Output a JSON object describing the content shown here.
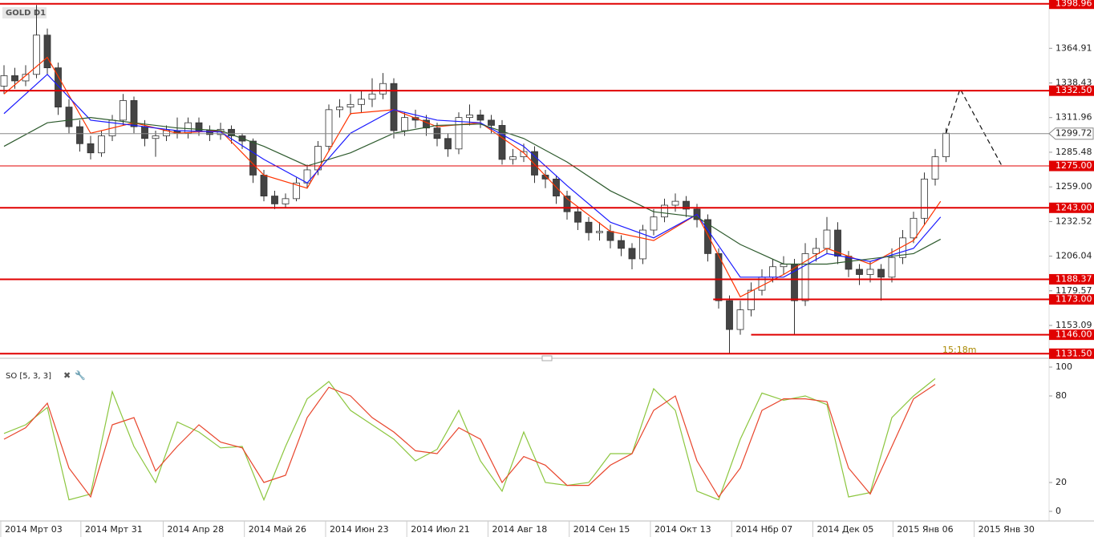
{
  "chart_data": [
    {
      "type": "candlestick",
      "title": "GOLD D1",
      "timer": "15:18m",
      "ylim": [
        1128,
        1400
      ],
      "yticks": [
        1364.91,
        1338.43,
        1311.96,
        1285.48,
        {
          "value": 1259.0,
          "label": "1259.00"
        },
        1232.52,
        1206.04,
        1179.57,
        1153.09
      ],
      "xticks": [
        {
          "value": -0.3,
          "label": "2014 Мрт 03"
        },
        {
          "value": 7.1,
          "label": "2014 Мрт 31"
        },
        {
          "value": 14.7,
          "label": "2014 Апр 28"
        },
        {
          "value": 22.2,
          "label": "2014 Май 26"
        },
        {
          "value": 29.7,
          "label": "2014 Июн 23"
        },
        {
          "value": 37.2,
          "label": "2014 Июл 21"
        },
        {
          "value": 44.7,
          "label": "2014 Авг 18"
        },
        {
          "value": 52.2,
          "label": "2014 Сен 15"
        },
        {
          "value": 59.7,
          "label": "2014 Окт 13"
        },
        {
          "value": 67.2,
          "label": "2014 Нбр 07"
        },
        {
          "value": 74.7,
          "label": "2014 Дек 05"
        },
        {
          "value": 82.1,
          "label": "2015 Янв 06"
        },
        {
          "value": 89.6,
          "label": "2015 Янв 30"
        }
      ],
      "ohlc": [
        [
          1336,
          1352,
          1330,
          1344
        ],
        [
          1344,
          1350,
          1334,
          1340
        ],
        [
          1340,
          1352,
          1336,
          1345
        ],
        [
          1345,
          1398,
          1342,
          1375
        ],
        [
          1375,
          1380,
          1345,
          1350
        ],
        [
          1350,
          1354,
          1314,
          1320
        ],
        [
          1320,
          1326,
          1300,
          1305
        ],
        [
          1305,
          1310,
          1286,
          1292
        ],
        [
          1292,
          1298,
          1280,
          1285
        ],
        [
          1285,
          1302,
          1282,
          1298
        ],
        [
          1298,
          1314,
          1294,
          1310
        ],
        [
          1310,
          1330,
          1306,
          1325
        ],
        [
          1325,
          1328,
          1300,
          1305
        ],
        [
          1305,
          1310,
          1290,
          1296
        ],
        [
          1296,
          1302,
          1282,
          1298
        ],
        [
          1298,
          1306,
          1294,
          1302
        ],
        [
          1302,
          1312,
          1296,
          1300
        ],
        [
          1300,
          1312,
          1296,
          1308
        ],
        [
          1308,
          1312,
          1298,
          1302
        ],
        [
          1302,
          1306,
          1294,
          1299
        ],
        [
          1299,
          1308,
          1295,
          1303
        ],
        [
          1303,
          1306,
          1292,
          1298
        ],
        [
          1298,
          1300,
          1288,
          1294
        ],
        [
          1294,
          1296,
          1262,
          1268
        ],
        [
          1268,
          1272,
          1248,
          1252
        ],
        [
          1252,
          1256,
          1242,
          1246
        ],
        [
          1246,
          1254,
          1243,
          1250
        ],
        [
          1250,
          1266,
          1248,
          1262
        ],
        [
          1262,
          1276,
          1258,
          1272
        ],
        [
          1272,
          1294,
          1268,
          1290
        ],
        [
          1290,
          1322,
          1286,
          1318
        ],
        [
          1318,
          1326,
          1312,
          1320
        ],
        [
          1320,
          1330,
          1314,
          1322
        ],
        [
          1322,
          1332,
          1316,
          1326
        ],
        [
          1326,
          1342,
          1320,
          1330
        ],
        [
          1330,
          1346,
          1326,
          1338
        ],
        [
          1338,
          1342,
          1296,
          1302
        ],
        [
          1302,
          1316,
          1298,
          1312
        ],
        [
          1312,
          1318,
          1304,
          1310
        ],
        [
          1310,
          1314,
          1298,
          1304
        ],
        [
          1304,
          1308,
          1290,
          1296
        ],
        [
          1296,
          1300,
          1282,
          1288
        ],
        [
          1288,
          1316,
          1284,
          1312
        ],
        [
          1312,
          1322,
          1306,
          1314
        ],
        [
          1314,
          1318,
          1304,
          1310
        ],
        [
          1310,
          1314,
          1300,
          1306
        ],
        [
          1306,
          1310,
          1276,
          1280
        ],
        [
          1280,
          1288,
          1276,
          1282
        ],
        [
          1282,
          1292,
          1278,
          1286
        ],
        [
          1286,
          1290,
          1262,
          1268
        ],
        [
          1268,
          1272,
          1258,
          1265
        ],
        [
          1265,
          1268,
          1246,
          1252
        ],
        [
          1252,
          1256,
          1234,
          1240
        ],
        [
          1240,
          1244,
          1226,
          1232
        ],
        [
          1232,
          1236,
          1218,
          1224
        ],
        [
          1224,
          1232,
          1218,
          1225
        ],
        [
          1225,
          1230,
          1212,
          1218
        ],
        [
          1218,
          1222,
          1206,
          1212
        ],
        [
          1212,
          1216,
          1196,
          1204
        ],
        [
          1204,
          1230,
          1200,
          1226
        ],
        [
          1226,
          1242,
          1222,
          1236
        ],
        [
          1236,
          1250,
          1232,
          1245
        ],
        [
          1245,
          1254,
          1240,
          1248
        ],
        [
          1248,
          1252,
          1236,
          1242
        ],
        [
          1242,
          1246,
          1228,
          1234
        ],
        [
          1234,
          1238,
          1202,
          1208
        ],
        [
          1208,
          1212,
          1166,
          1172
        ],
        [
          1172,
          1176,
          1132,
          1150
        ],
        [
          1150,
          1172,
          1146,
          1165
        ],
        [
          1165,
          1186,
          1160,
          1180
        ],
        [
          1180,
          1196,
          1176,
          1190
        ],
        [
          1190,
          1204,
          1186,
          1198
        ],
        [
          1198,
          1206,
          1192,
          1200
        ],
        [
          1200,
          1204,
          1146,
          1172
        ],
        [
          1172,
          1216,
          1168,
          1208
        ],
        [
          1208,
          1220,
          1202,
          1212
        ],
        [
          1212,
          1236,
          1208,
          1226
        ],
        [
          1226,
          1232,
          1200,
          1206
        ],
        [
          1206,
          1210,
          1190,
          1196
        ],
        [
          1196,
          1200,
          1184,
          1192
        ],
        [
          1192,
          1202,
          1186,
          1196
        ],
        [
          1196,
          1200,
          1172,
          1190
        ],
        [
          1190,
          1212,
          1186,
          1205
        ],
        [
          1205,
          1226,
          1200,
          1220
        ],
        [
          1220,
          1240,
          1216,
          1235
        ],
        [
          1235,
          1270,
          1230,
          1265
        ],
        [
          1265,
          1288,
          1260,
          1282
        ],
        [
          1282,
          1304,
          1278,
          1300
        ]
      ],
      "bull_color": "#ffffff",
      "bear_color": "#444444",
      "series": [
        {
          "color": "#ff3300",
          "x": [
            0,
            4,
            8,
            12,
            16,
            20,
            24,
            28,
            32,
            36,
            40,
            44,
            48,
            52,
            56,
            60,
            64,
            68,
            72,
            76,
            80,
            84,
            86.5
          ],
          "values": [
            1330,
            1358,
            1300,
            1308,
            1300,
            1302,
            1268,
            1258,
            1315,
            1318,
            1305,
            1308,
            1285,
            1250,
            1225,
            1218,
            1238,
            1175,
            1192,
            1212,
            1200,
            1218,
            1248
          ]
        },
        {
          "color": "#1a1aff",
          "x": [
            0,
            4,
            8,
            12,
            16,
            20,
            24,
            28,
            32,
            36,
            40,
            44,
            48,
            52,
            56,
            60,
            64,
            68,
            72,
            76,
            80,
            84,
            86.5
          ],
          "values": [
            1315,
            1345,
            1310,
            1306,
            1302,
            1301,
            1280,
            1262,
            1300,
            1318,
            1310,
            1308,
            1290,
            1260,
            1232,
            1220,
            1238,
            1190,
            1190,
            1208,
            1202,
            1212,
            1236
          ]
        },
        {
          "color": "#2d5a2d",
          "x": [
            0,
            4,
            8,
            12,
            16,
            20,
            24,
            28,
            32,
            36,
            40,
            44,
            48,
            52,
            56,
            60,
            64,
            68,
            72,
            76,
            80,
            84,
            86.5
          ],
          "values": [
            1290,
            1308,
            1312,
            1308,
            1304,
            1302,
            1290,
            1275,
            1285,
            1300,
            1306,
            1307,
            1296,
            1278,
            1256,
            1240,
            1236,
            1215,
            1200,
            1200,
            1204,
            1208,
            1219
          ]
        }
      ],
      "levels": [
        {
          "value": 1398.96,
          "label": "1398.96",
          "color": "#e00000",
          "width": 2
        },
        {
          "value": 1332.5,
          "label": "1332.50",
          "color": "#e00000",
          "width": 2
        },
        {
          "value": 1299.72,
          "label": "1299.72",
          "color": "#888888",
          "width": 1
        },
        {
          "value": 1275.0,
          "label": "1275.00",
          "color": "#e00000",
          "width": 1
        },
        {
          "value": 1243.0,
          "label": "1243.00",
          "color": "#e00000",
          "width": 2
        },
        {
          "value": 1188.37,
          "label": "1188.37",
          "color": "#e00000",
          "width": 2
        },
        {
          "value": 1173.0,
          "label": "1173.00",
          "color": "#e00000",
          "width": 2,
          "start": 65.5
        },
        {
          "value": 1146.0,
          "label": "1146.00",
          "color": "#e00000",
          "width": 2,
          "start": 69
        },
        {
          "value": 1131.5,
          "label": "1131.50",
          "color": "#e00000",
          "width": 2
        }
      ],
      "projection": {
        "x": [
          87,
          88.3,
          92.1
        ],
        "values": [
          1300,
          1334,
          1276
        ]
      }
    },
    {
      "type": "line",
      "title": "SO [5, 3, 3]",
      "ylim": [
        0,
        100
      ],
      "yticks": [
        0,
        20,
        80,
        100
      ],
      "x": [
        0,
        2,
        4,
        6,
        8,
        10,
        12,
        14,
        16,
        18,
        20,
        22,
        24,
        26,
        28,
        30,
        32,
        34,
        36,
        38,
        40,
        42,
        44,
        46,
        48,
        50,
        52,
        54,
        56,
        58,
        60,
        62,
        64,
        66,
        68,
        70,
        72,
        74,
        76,
        78,
        80,
        82,
        84,
        86
      ],
      "series": [
        {
          "color": "#8cc63f",
          "values": [
            54,
            60,
            72,
            8,
            12,
            83,
            45,
            20,
            62,
            55,
            44,
            45,
            8,
            45,
            78,
            90,
            70,
            60,
            50,
            35,
            43,
            70,
            35,
            14,
            55,
            20,
            18,
            20,
            40,
            40,
            85,
            70,
            14,
            8,
            50,
            82,
            77,
            80,
            74,
            10,
            13,
            65,
            80,
            92
          ]
        },
        {
          "color": "#e8452c",
          "values": [
            50,
            58,
            75,
            30,
            10,
            60,
            65,
            28,
            45,
            60,
            48,
            44,
            20,
            25,
            65,
            86,
            80,
            65,
            55,
            42,
            40,
            58,
            50,
            20,
            38,
            32,
            18,
            18,
            32,
            40,
            70,
            80,
            35,
            10,
            30,
            70,
            78,
            78,
            76,
            30,
            12,
            45,
            78,
            88
          ]
        }
      ]
    }
  ]
}
